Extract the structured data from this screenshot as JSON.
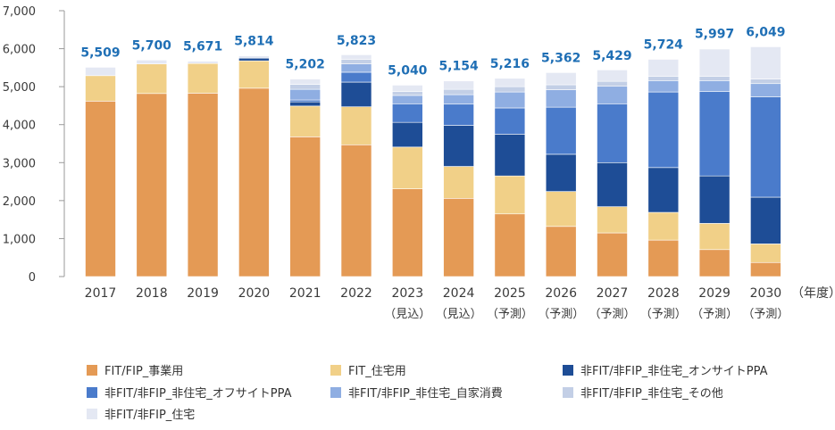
{
  "chart_data": {
    "type": "stacked-bar",
    "title": "",
    "xlabel": "（年度）",
    "ylabel": "",
    "ylim": [
      0,
      7000
    ],
    "yticks": [
      0,
      1000,
      2000,
      3000,
      4000,
      5000,
      6000,
      7000
    ],
    "ytick_labels": [
      "0",
      "1,000",
      "2,000",
      "3,000",
      "4,000",
      "5,000",
      "6,000",
      "7,000"
    ],
    "grid": false,
    "legend_position": "bottom",
    "categories": [
      "2017",
      "2018",
      "2019",
      "2020",
      "2021",
      "2022",
      "2023",
      "2024",
      "2025",
      "2026",
      "2027",
      "2028",
      "2029",
      "2030"
    ],
    "sublabels": [
      "",
      "",
      "",
      "",
      "",
      "",
      "（見込）",
      "（見込）",
      "（予測）",
      "（予測）",
      "（予測）",
      "（予測）",
      "（予測）",
      "（予測）"
    ],
    "totals": [
      5509,
      5700,
      5671,
      5814,
      5202,
      5823,
      5040,
      5154,
      5216,
      5362,
      5429,
      5724,
      5997,
      6049
    ],
    "total_labels": [
      "5,509",
      "5,700",
      "5,671",
      "5,814",
      "5,202",
      "5,823",
      "5,040",
      "5,154",
      "5,216",
      "5,362",
      "5,429",
      "5,724",
      "5,997",
      "6,049"
    ],
    "series": [
      {
        "name": "FIT/FIP_事業用",
        "color": "#e49a55",
        "values": [
          4620,
          4820,
          4830,
          4960,
          3680,
          3470,
          2310,
          2060,
          1650,
          1320,
          1150,
          960,
          710,
          370
        ]
      },
      {
        "name": "FIT_住宅用",
        "color": "#f1d088",
        "values": [
          670,
          780,
          780,
          720,
          810,
          1000,
          1100,
          840,
          1000,
          920,
          690,
          730,
          690,
          490
        ]
      },
      {
        "name": "非FIT/非FIP_非住宅_オンサイトPPA",
        "color": "#1e4d96",
        "values": [
          0,
          0,
          0,
          70,
          110,
          650,
          650,
          1080,
          1100,
          980,
          1160,
          1180,
          1250,
          1230
        ]
      },
      {
        "name": "非FIT/非FIP_非住宅_オフサイトPPA",
        "color": "#4a7bcb",
        "values": [
          0,
          0,
          0,
          0,
          50,
          260,
          490,
          560,
          690,
          1240,
          1550,
          1990,
          2220,
          2640
        ]
      },
      {
        "name": "非FIT/非FIP_非住宅_自家消費",
        "color": "#8faee2",
        "values": [
          0,
          0,
          0,
          0,
          280,
          220,
          220,
          250,
          420,
          460,
          460,
          300,
          290,
          350
        ]
      },
      {
        "name": "非FIT/非FIP_非住宅_その他",
        "color": "#c3cfe6",
        "values": [
          0,
          0,
          0,
          0,
          130,
          120,
          100,
          140,
          140,
          130,
          130,
          110,
          110,
          120
        ]
      },
      {
        "name": "非FIT/非FIP_住宅",
        "color": "#e4e8f3",
        "values": [
          220,
          100,
          60,
          60,
          140,
          120,
          170,
          220,
          220,
          320,
          300,
          450,
          720,
          850
        ]
      }
    ]
  }
}
